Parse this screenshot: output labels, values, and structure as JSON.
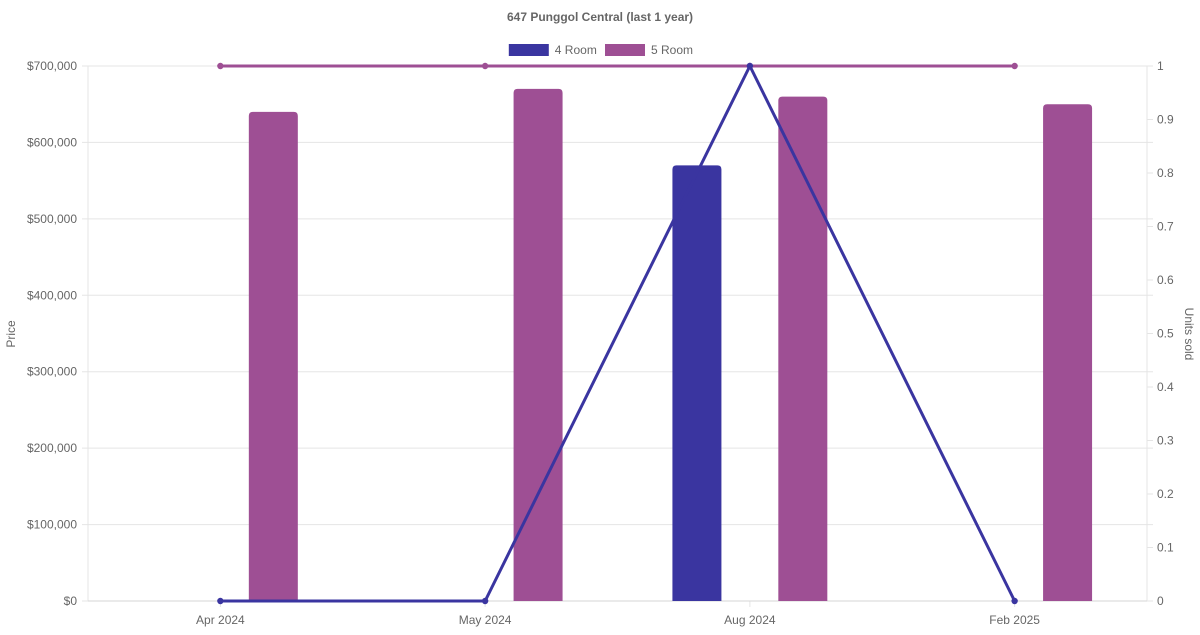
{
  "chart_data": {
    "type": "bar",
    "title": "647 Punggol Central (last 1 year)",
    "categories": [
      "Apr 2024",
      "May 2024",
      "Aug 2024",
      "Feb 2025"
    ],
    "series": [
      {
        "name": "4 Room",
        "kind": "bar",
        "axis": "price",
        "color": "#3a35a0",
        "values": [
          null,
          null,
          570000,
          null
        ]
      },
      {
        "name": "5 Room",
        "kind": "bar",
        "axis": "price",
        "color": "#9e4f94",
        "values": [
          640000,
          670000,
          660000,
          650000
        ]
      },
      {
        "name": "4 Room",
        "kind": "line",
        "axis": "units",
        "color": "#3a35a0",
        "values": [
          0,
          0,
          1,
          0
        ]
      },
      {
        "name": "5 Room",
        "kind": "line",
        "axis": "units",
        "color": "#9e4f94",
        "values": [
          1,
          1,
          1,
          1
        ]
      }
    ],
    "legend": [
      {
        "name": "4 Room",
        "color": "#3a35a0"
      },
      {
        "name": "5 Room",
        "color": "#9e4f94"
      }
    ],
    "legend_position": "top",
    "y_left": {
      "label": "Price",
      "ylim": [
        0,
        700000
      ],
      "ticks": [
        0,
        100000,
        200000,
        300000,
        400000,
        500000,
        600000,
        700000
      ],
      "tick_labels": [
        "$0",
        "$100,000",
        "$200,000",
        "$300,000",
        "$400,000",
        "$500,000",
        "$600,000",
        "$700,000"
      ]
    },
    "y_right": {
      "label": "Units sold",
      "ylim": [
        0,
        1
      ],
      "ticks": [
        0,
        0.1,
        0.2,
        0.3,
        0.4,
        0.5,
        0.6,
        0.7,
        0.8,
        0.9,
        1
      ],
      "tick_labels": [
        "0",
        "0.1",
        "0.2",
        "0.3",
        "0.4",
        "0.5",
        "0.6",
        "0.7",
        "0.8",
        "0.9",
        "1"
      ]
    },
    "grid": true
  }
}
